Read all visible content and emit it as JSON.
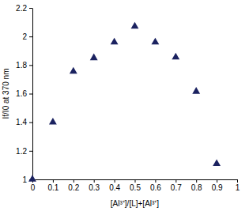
{
  "chart_data": {
    "type": "scatter",
    "x_label": "[Al³⁺]/[L]+[Al³⁺]",
    "y_label": "If/I0 at 370 nm",
    "x": [
      0,
      0.1,
      0.2,
      0.3,
      0.4,
      0.5,
      0.6,
      0.7,
      0.8,
      0.9
    ],
    "values": [
      1.0,
      1.4,
      1.755,
      1.85,
      1.96,
      2.07,
      1.96,
      1.855,
      1.615,
      1.11
    ],
    "color": "#1b2260",
    "marker": "triangle",
    "xlim": [
      0,
      1
    ],
    "xticks": [
      0,
      0.1,
      0.2,
      0.3,
      0.4,
      0.5,
      0.6,
      0.7,
      0.8,
      0.9,
      1
    ],
    "ylim": [
      1,
      2.2
    ],
    "yticks": [
      1,
      1.2,
      1.4,
      1.6,
      1.8,
      2,
      2.2
    ],
    "grid": false
  }
}
